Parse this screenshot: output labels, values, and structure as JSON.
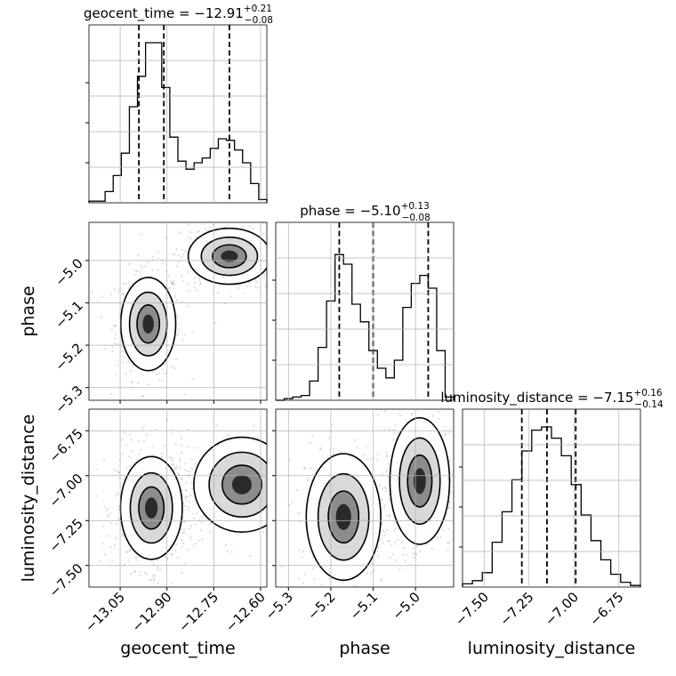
{
  "chart_data": {
    "type": "corner",
    "parameters": [
      "geocent_time",
      "phase",
      "luminosity_distance"
    ],
    "titles": [
      {
        "param": "geocent_time",
        "prefix": "geocent_time = ",
        "median": "−12.91",
        "plus": "+0.21",
        "minus": "−0.08"
      },
      {
        "param": "phase",
        "prefix": "phase = ",
        "median": "−5.10",
        "plus": "+0.13",
        "minus": "−0.08"
      },
      {
        "param": "luminosity_distance",
        "prefix": "luminosity_distance = ",
        "median": "−7.15",
        "plus": "+0.16",
        "minus": "−0.14"
      }
    ],
    "axis_labels": [
      "geocent_time",
      "phase",
      "luminosity_distance"
    ],
    "ranges": [
      [
        -13.15,
        -12.58
      ],
      [
        -5.33,
        -4.91
      ],
      [
        -7.62,
        -6.63
      ]
    ],
    "ticks": [
      {
        "values": [
          -13.05,
          -12.9,
          -12.75,
          -12.6
        ],
        "labels": [
          "−13.05",
          "−12.90",
          "−12.75",
          "−12.60"
        ]
      },
      {
        "values": [
          -5.3,
          -5.2,
          -5.1,
          -5.0
        ],
        "labels": [
          "−5.3",
          "−5.2",
          "−5.1",
          "−5.0"
        ]
      },
      {
        "values": [
          -7.5,
          -7.25,
          -7.0,
          -6.75
        ],
        "labels": [
          "−7.50",
          "−7.25",
          "−7.00",
          "−6.75"
        ]
      }
    ],
    "quantiles": [
      [
        -12.99,
        -12.91,
        -12.7
      ],
      [
        -5.18,
        -5.1,
        -4.97
      ],
      [
        -7.29,
        -7.15,
        -6.99
      ]
    ],
    "histograms": [
      [
        0.01,
        0.01,
        0.07,
        0.17,
        0.31,
        0.6,
        0.79,
        1.0,
        1.0,
        0.72,
        0.41,
        0.26,
        0.21,
        0.25,
        0.28,
        0.34,
        0.4,
        0.39,
        0.33,
        0.25,
        0.12,
        0.02
      ],
      [
        0.0,
        0.01,
        0.02,
        0.03,
        0.12,
        0.33,
        0.62,
        0.91,
        0.85,
        0.6,
        0.49,
        0.31,
        0.2,
        0.14,
        0.25,
        0.58,
        0.73,
        0.78,
        0.7,
        0.31,
        0.02
      ],
      [
        0.02,
        0.04,
        0.09,
        0.28,
        0.47,
        0.67,
        0.85,
        0.98,
        1.0,
        0.93,
        0.82,
        0.64,
        0.45,
        0.29,
        0.17,
        0.08,
        0.03,
        0.01
      ]
    ],
    "modes": {
      "0-1": [
        [
          -12.96,
          -5.15,
          0.04,
          0.05,
          0.55
        ],
        [
          -12.7,
          -4.99,
          0.06,
          0.03,
          0.45
        ]
      ],
      "0-2": [
        [
          -12.95,
          -7.18,
          0.045,
          0.13,
          0.75
        ],
        [
          -12.66,
          -7.05,
          0.07,
          0.12,
          0.25
        ]
      ],
      "1-2": [
        [
          -5.17,
          -7.23,
          0.04,
          0.16,
          0.5
        ],
        [
          -4.99,
          -7.03,
          0.032,
          0.16,
          0.5
        ]
      ]
    },
    "grid": true
  }
}
